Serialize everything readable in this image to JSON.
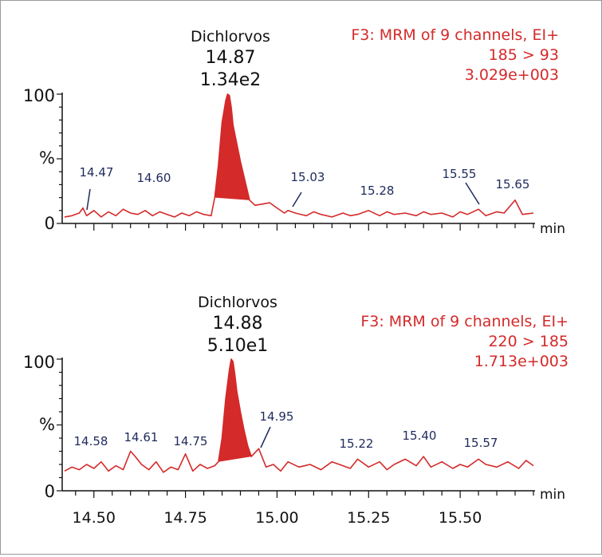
{
  "chart_data": [
    {
      "type": "line",
      "title": "",
      "compound": "Dichlorvos",
      "peak_rt": "14.87",
      "peak_area": "1.34e2",
      "info_lines": [
        "F3: MRM of 9 channels, EI+",
        "185 > 93",
        "3.029e+003"
      ],
      "ylabel": "%",
      "xlabel": "min",
      "yticks": [
        0,
        100
      ],
      "ytick_labels": [
        "0",
        "100"
      ],
      "ylim": [
        0,
        100
      ],
      "xlim": [
        14.42,
        15.7
      ],
      "line_color": "#d42a2a",
      "fill_color": "#d42a2a",
      "peak_fill_range": [
        14.83,
        14.925
      ],
      "annotations": [
        {
          "x": 14.47,
          "label": "14.47"
        },
        {
          "x": 14.6,
          "label": "14.60"
        },
        {
          "x": 15.03,
          "label": "15.03"
        },
        {
          "x": 15.28,
          "label": "15.28"
        },
        {
          "x": 15.55,
          "label": "15.55"
        },
        {
          "x": 15.65,
          "label": "15.65"
        }
      ],
      "x": [
        14.42,
        14.44,
        14.46,
        14.47,
        14.48,
        14.5,
        14.52,
        14.54,
        14.56,
        14.58,
        14.6,
        14.62,
        14.64,
        14.66,
        14.68,
        14.7,
        14.72,
        14.74,
        14.76,
        14.78,
        14.8,
        14.82,
        14.83,
        14.84,
        14.85,
        14.86,
        14.865,
        14.87,
        14.875,
        14.88,
        14.89,
        14.9,
        14.91,
        14.92,
        14.925,
        14.94,
        14.96,
        14.98,
        15.0,
        15.02,
        15.03,
        15.05,
        15.08,
        15.1,
        15.12,
        15.15,
        15.18,
        15.2,
        15.22,
        15.25,
        15.28,
        15.3,
        15.32,
        15.35,
        15.38,
        15.4,
        15.42,
        15.45,
        15.48,
        15.5,
        15.52,
        15.55,
        15.57,
        15.6,
        15.62,
        15.65,
        15.67,
        15.7
      ],
      "y": [
        5,
        6,
        8,
        12,
        6,
        10,
        5,
        9,
        6,
        11,
        8,
        7,
        10,
        6,
        9,
        7,
        5,
        8,
        6,
        9,
        7,
        6,
        20,
        45,
        78,
        95,
        100,
        99,
        90,
        76,
        62,
        48,
        36,
        24,
        18,
        14,
        15,
        16,
        12,
        8,
        10,
        8,
        6,
        9,
        7,
        5,
        8,
        6,
        7,
        10,
        6,
        9,
        7,
        8,
        6,
        9,
        7,
        8,
        5,
        9,
        7,
        11,
        6,
        9,
        8,
        18,
        7,
        8
      ]
    },
    {
      "type": "line",
      "title": "",
      "compound": "Dichlorvos",
      "peak_rt": "14.88",
      "peak_area": "5.10e1",
      "info_lines": [
        "F3: MRM of 9 channels, EI+",
        "220 > 185",
        "1.713e+003"
      ],
      "ylabel": "%",
      "xlabel": "min",
      "yticks": [
        0,
        100
      ],
      "ytick_labels": [
        "0",
        "100"
      ],
      "ylim": [
        0,
        100
      ],
      "xlim": [
        14.42,
        15.7
      ],
      "xticks": [
        14.5,
        14.75,
        15.0,
        15.25,
        15.5
      ],
      "xtick_labels": [
        "14.50",
        "14.75",
        "15.00",
        "15.25",
        "15.50"
      ],
      "line_color": "#d42a2a",
      "fill_color": "#d42a2a",
      "peak_fill_range": [
        14.84,
        14.93
      ],
      "annotations": [
        {
          "x": 14.58,
          "label": "14.58"
        },
        {
          "x": 14.61,
          "label": "14.61"
        },
        {
          "x": 14.75,
          "label": "14.75"
        },
        {
          "x": 14.95,
          "label": "14.95"
        },
        {
          "x": 15.22,
          "label": "15.22"
        },
        {
          "x": 15.4,
          "label": "15.40"
        },
        {
          "x": 15.57,
          "label": "15.57"
        }
      ],
      "x": [
        14.42,
        14.44,
        14.46,
        14.48,
        14.5,
        14.52,
        14.54,
        14.56,
        14.58,
        14.6,
        14.61,
        14.63,
        14.65,
        14.67,
        14.69,
        14.71,
        14.73,
        14.75,
        14.77,
        14.79,
        14.81,
        14.83,
        14.84,
        14.85,
        14.86,
        14.87,
        14.875,
        14.88,
        14.885,
        14.89,
        14.9,
        14.91,
        14.92,
        14.93,
        14.95,
        14.97,
        14.99,
        15.01,
        15.03,
        15.06,
        15.09,
        15.12,
        15.15,
        15.18,
        15.2,
        15.22,
        15.25,
        15.28,
        15.3,
        15.32,
        15.35,
        15.38,
        15.4,
        15.42,
        15.45,
        15.48,
        15.5,
        15.52,
        15.55,
        15.57,
        15.6,
        15.63,
        15.66,
        15.68,
        15.7
      ],
      "y": [
        15,
        18,
        16,
        20,
        17,
        22,
        15,
        19,
        16,
        30,
        27,
        20,
        16,
        22,
        14,
        18,
        16,
        28,
        15,
        20,
        17,
        19,
        22,
        40,
        70,
        92,
        100,
        98,
        88,
        76,
        60,
        46,
        34,
        26,
        32,
        18,
        20,
        15,
        22,
        18,
        20,
        16,
        22,
        19,
        17,
        24,
        18,
        22,
        16,
        20,
        24,
        19,
        26,
        18,
        22,
        17,
        20,
        18,
        24,
        20,
        18,
        22,
        17,
        23,
        19
      ]
    }
  ]
}
